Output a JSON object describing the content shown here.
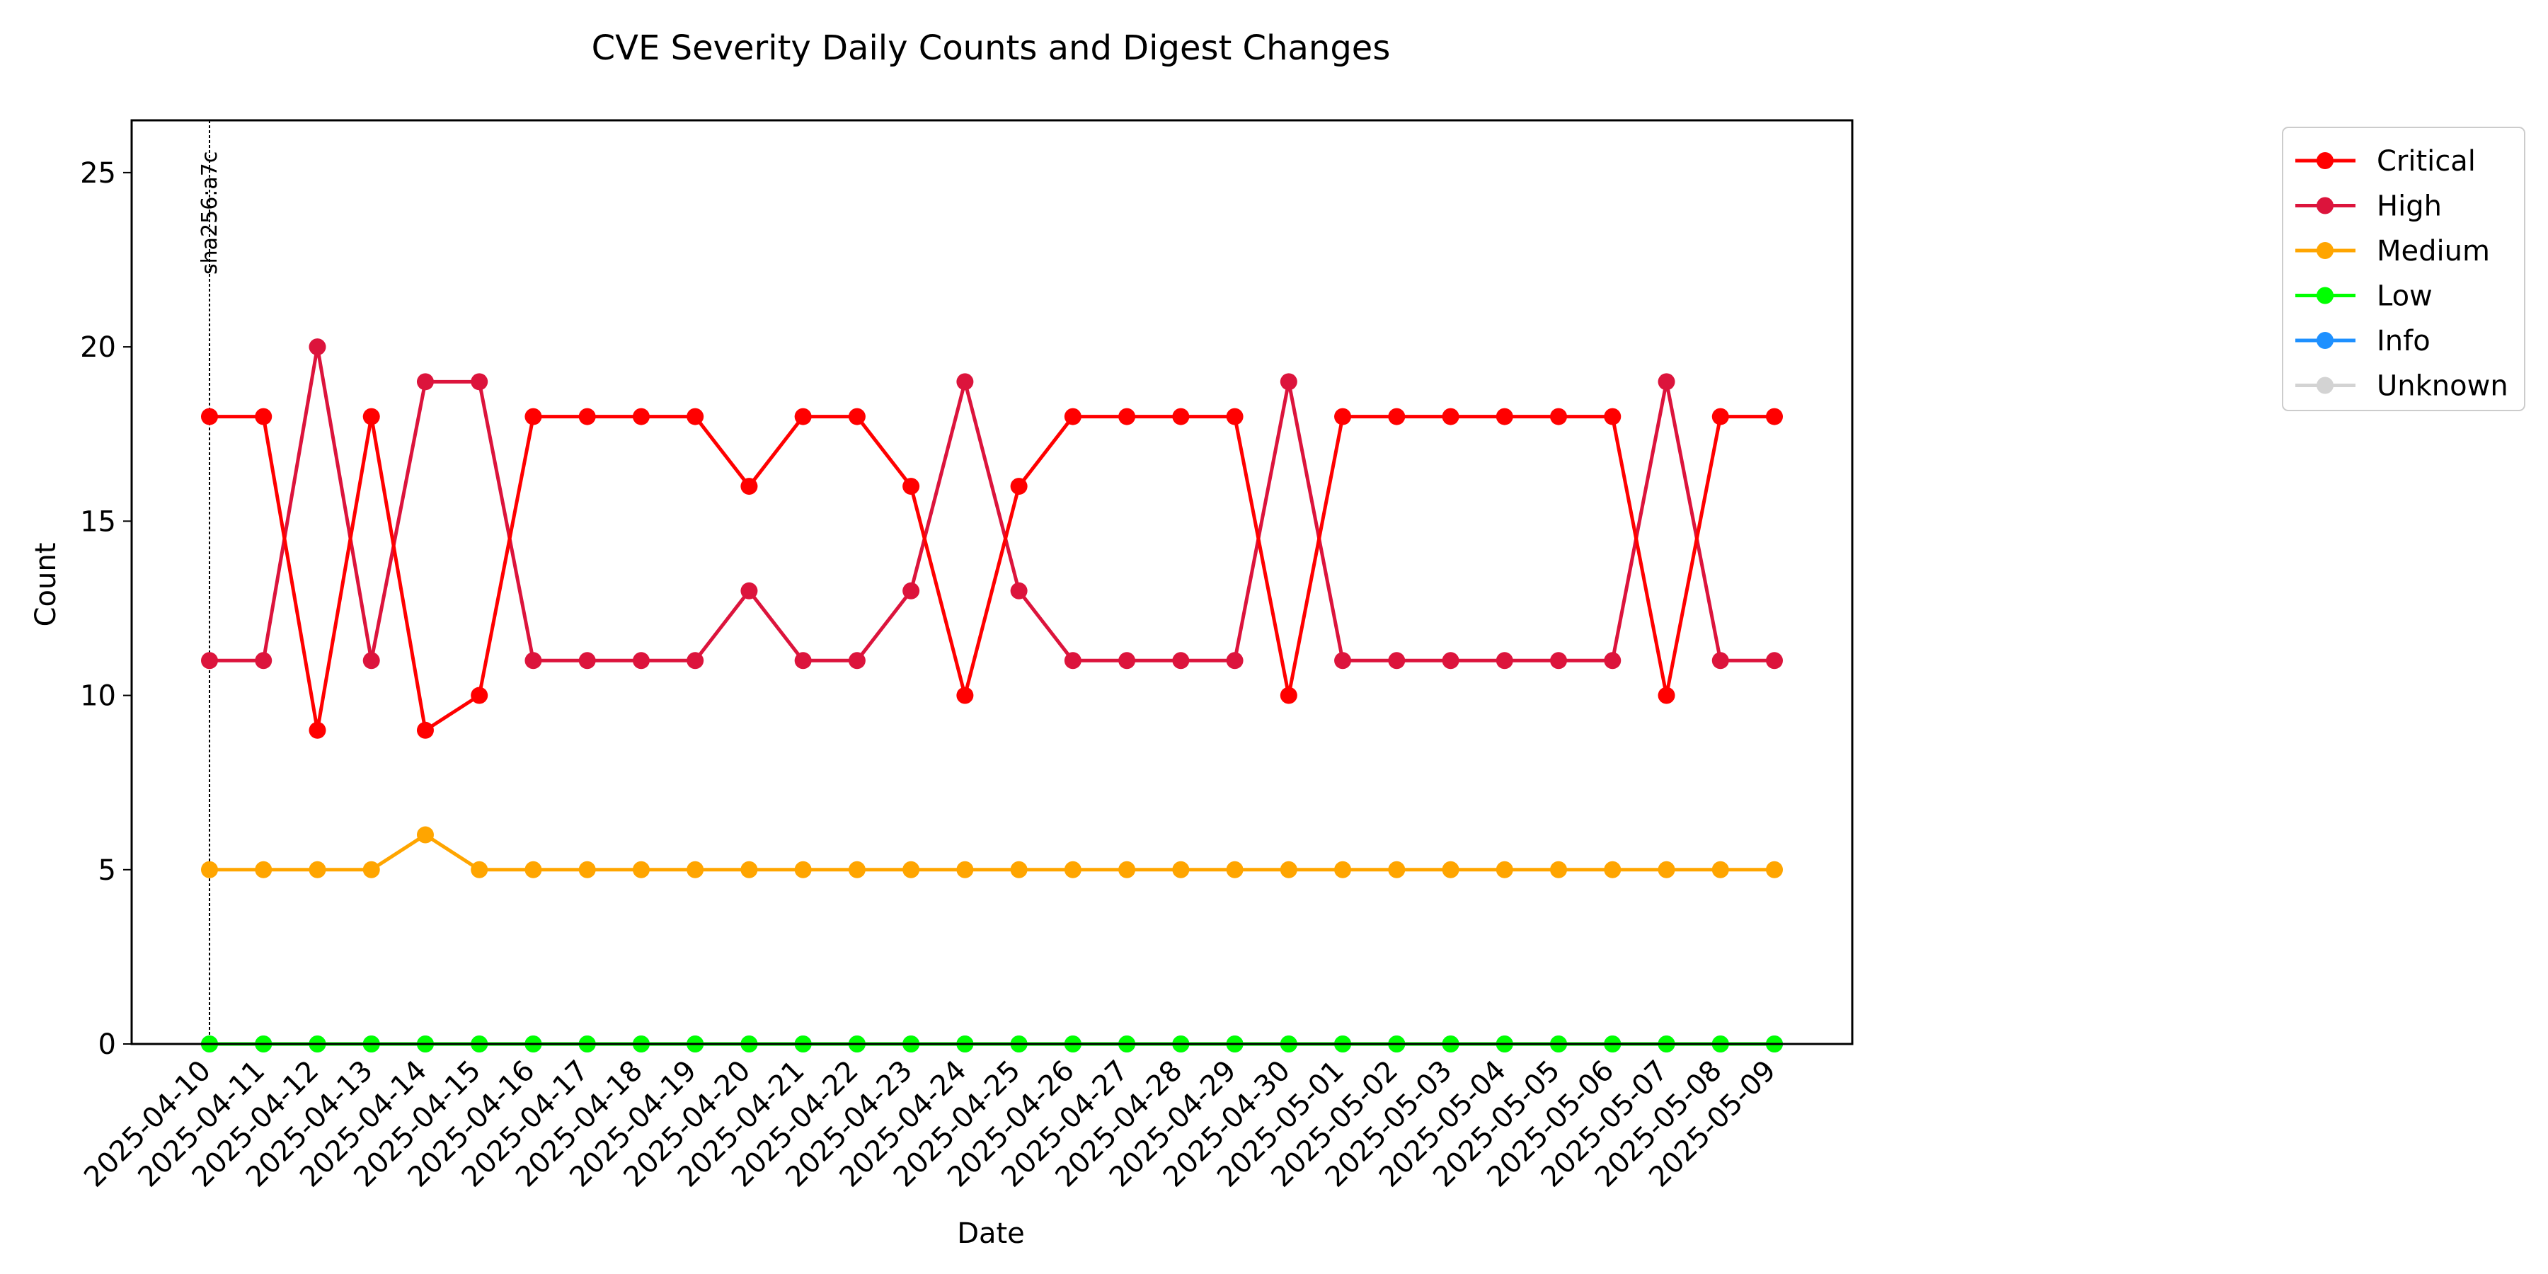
{
  "chart_data": {
    "type": "line",
    "title": "CVE Severity Daily Counts and Digest Changes",
    "xlabel": "Date",
    "ylabel": "Count",
    "ylim": [
      0,
      26.5
    ],
    "yticks": [
      0,
      5,
      10,
      15,
      20,
      25
    ],
    "grid": false,
    "legend_position": "outside-right-top",
    "x": [
      "2025-04-10",
      "2025-04-11",
      "2025-04-12",
      "2025-04-13",
      "2025-04-14",
      "2025-04-15",
      "2025-04-16",
      "2025-04-17",
      "2025-04-18",
      "2025-04-19",
      "2025-04-20",
      "2025-04-21",
      "2025-04-22",
      "2025-04-23",
      "2025-04-24",
      "2025-04-25",
      "2025-04-26",
      "2025-04-27",
      "2025-04-28",
      "2025-04-29",
      "2025-04-30",
      "2025-05-01",
      "2025-05-02",
      "2025-05-03",
      "2025-05-04",
      "2025-05-05",
      "2025-05-06",
      "2025-05-07",
      "2025-05-08",
      "2025-05-09"
    ],
    "series": [
      {
        "name": "Critical",
        "color": "#ff0000",
        "values": [
          18,
          18,
          9,
          18,
          9,
          10,
          18,
          18,
          18,
          18,
          16,
          18,
          18,
          16,
          10,
          16,
          18,
          18,
          18,
          18,
          10,
          18,
          18,
          18,
          18,
          18,
          18,
          10,
          18,
          18
        ]
      },
      {
        "name": "High",
        "color": "#dc143c",
        "values": [
          11,
          11,
          20,
          11,
          19,
          19,
          11,
          11,
          11,
          11,
          13,
          11,
          11,
          13,
          19,
          13,
          11,
          11,
          11,
          11,
          19,
          11,
          11,
          11,
          11,
          11,
          11,
          19,
          11,
          11
        ]
      },
      {
        "name": "Medium",
        "color": "#ffa500",
        "values": [
          5,
          5,
          5,
          5,
          6,
          5,
          5,
          5,
          5,
          5,
          5,
          5,
          5,
          5,
          5,
          5,
          5,
          5,
          5,
          5,
          5,
          5,
          5,
          5,
          5,
          5,
          5,
          5,
          5,
          5
        ]
      },
      {
        "name": "Low",
        "color": "#00ff00",
        "values": [
          0,
          0,
          0,
          0,
          0,
          0,
          0,
          0,
          0,
          0,
          0,
          0,
          0,
          0,
          0,
          0,
          0,
          0,
          0,
          0,
          0,
          0,
          0,
          0,
          0,
          0,
          0,
          0,
          0,
          0
        ]
      },
      {
        "name": "Info",
        "color": "#1e90ff",
        "values": [
          0,
          0,
          0,
          0,
          0,
          0,
          0,
          0,
          0,
          0,
          0,
          0,
          0,
          0,
          0,
          0,
          0,
          0,
          0,
          0,
          0,
          0,
          0,
          0,
          0,
          0,
          0,
          0,
          0,
          0
        ]
      },
      {
        "name": "Unknown",
        "color": "#d3d3d3",
        "values": [
          0,
          0,
          0,
          0,
          0,
          0,
          0,
          0,
          0,
          0,
          0,
          0,
          0,
          0,
          0,
          0,
          0,
          0,
          0,
          0,
          0,
          0,
          0,
          0,
          0,
          0,
          0,
          0,
          0,
          0
        ]
      }
    ],
    "annotations": [
      {
        "x": "2025-04-10",
        "label": "sha256:a7c"
      }
    ]
  }
}
